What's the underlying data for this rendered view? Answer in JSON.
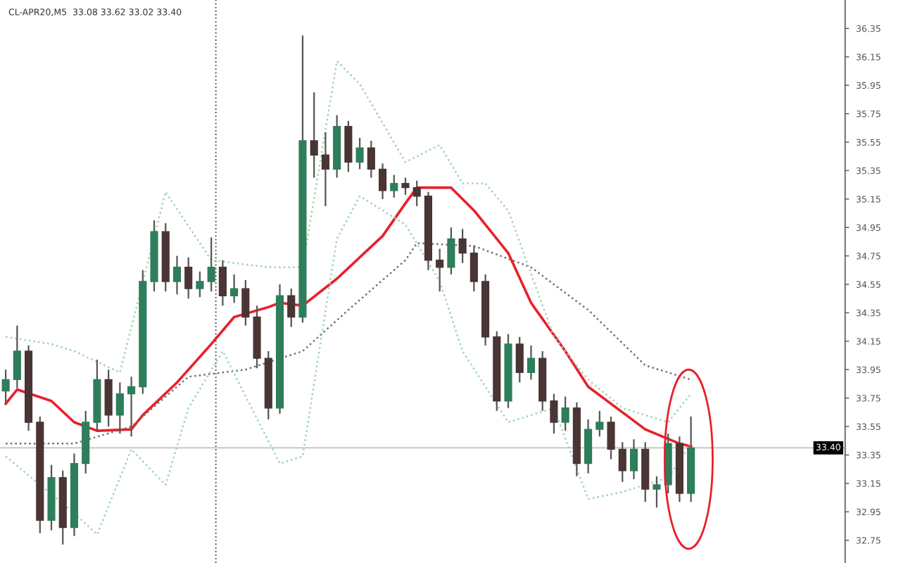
{
  "chart_data": {
    "type": "candlestick",
    "title": "CL-APR20,M5  33.08 33.62 33.02 33.40",
    "categories": [
      null,
      null,
      null,
      null,
      null,
      null,
      null,
      null,
      null,
      null,
      null,
      null,
      null,
      null,
      null,
      null,
      null,
      null,
      null,
      null,
      null,
      null,
      null,
      null,
      null,
      null,
      null,
      null,
      null,
      null,
      null,
      null,
      null,
      null,
      null,
      null,
      null,
      null,
      null,
      null,
      null,
      null,
      null,
      null,
      null,
      null,
      null,
      null,
      null,
      null,
      null,
      null,
      null,
      null,
      null,
      null,
      null,
      null,
      null,
      null,
      null,
      null,
      null,
      null,
      null,
      null,
      null,
      null,
      null,
      null,
      null,
      null,
      null,
      null
    ],
    "ohlc": [
      [
        33.8,
        33.95,
        33.72,
        33.88
      ],
      [
        33.88,
        34.26,
        33.82,
        34.08
      ],
      [
        34.08,
        34.12,
        33.52,
        33.58
      ],
      [
        33.58,
        33.62,
        32.8,
        32.89
      ],
      [
        32.89,
        33.28,
        32.82,
        33.19
      ],
      [
        33.19,
        33.24,
        32.72,
        32.84
      ],
      [
        32.84,
        33.36,
        32.78,
        33.29
      ],
      [
        33.29,
        33.66,
        33.22,
        33.58
      ],
      [
        33.58,
        34.02,
        33.52,
        33.88
      ],
      [
        33.88,
        33.95,
        33.55,
        33.63
      ],
      [
        33.63,
        33.86,
        33.5,
        33.78
      ],
      [
        33.78,
        33.9,
        33.48,
        33.83
      ],
      [
        33.83,
        34.65,
        33.78,
        34.57
      ],
      [
        34.57,
        35.0,
        34.5,
        34.92
      ],
      [
        34.92,
        34.98,
        34.5,
        34.57
      ],
      [
        34.57,
        34.75,
        34.48,
        34.67
      ],
      [
        34.67,
        34.74,
        34.45,
        34.52
      ],
      [
        34.52,
        34.64,
        34.46,
        34.57
      ],
      [
        34.57,
        34.88,
        34.5,
        34.67
      ],
      [
        34.67,
        34.72,
        34.4,
        34.47
      ],
      [
        34.47,
        34.62,
        34.42,
        34.52
      ],
      [
        34.52,
        34.58,
        34.26,
        34.32
      ],
      [
        34.32,
        34.4,
        33.96,
        34.03
      ],
      [
        34.03,
        34.08,
        33.6,
        33.68
      ],
      [
        33.68,
        34.55,
        33.64,
        34.47
      ],
      [
        34.47,
        34.52,
        34.25,
        34.32
      ],
      [
        34.32,
        36.3,
        34.28,
        35.56
      ],
      [
        35.56,
        35.9,
        35.3,
        35.46
      ],
      [
        35.46,
        35.62,
        35.1,
        35.36
      ],
      [
        35.36,
        35.74,
        35.3,
        35.66
      ],
      [
        35.66,
        35.7,
        35.34,
        35.41
      ],
      [
        35.41,
        35.58,
        35.36,
        35.51
      ],
      [
        35.51,
        35.56,
        35.3,
        35.36
      ],
      [
        35.36,
        35.4,
        35.15,
        35.21
      ],
      [
        35.21,
        35.32,
        35.16,
        35.26
      ],
      [
        35.26,
        35.3,
        35.18,
        35.23
      ],
      [
        35.23,
        35.28,
        35.1,
        35.17
      ],
      [
        35.17,
        35.2,
        34.65,
        34.72
      ],
      [
        34.72,
        34.8,
        34.5,
        34.67
      ],
      [
        34.67,
        34.95,
        34.62,
        34.87
      ],
      [
        34.87,
        34.94,
        34.7,
        34.77
      ],
      [
        34.77,
        34.82,
        34.5,
        34.57
      ],
      [
        34.57,
        34.62,
        34.12,
        34.18
      ],
      [
        34.18,
        34.22,
        33.66,
        33.73
      ],
      [
        33.73,
        34.2,
        33.68,
        34.13
      ],
      [
        34.13,
        34.18,
        33.86,
        33.93
      ],
      [
        33.93,
        34.12,
        33.88,
        34.03
      ],
      [
        34.03,
        34.08,
        33.66,
        33.73
      ],
      [
        33.73,
        33.78,
        33.5,
        33.58
      ],
      [
        33.58,
        33.76,
        33.52,
        33.68
      ],
      [
        33.68,
        33.72,
        33.2,
        33.29
      ],
      [
        33.29,
        33.6,
        33.22,
        33.53
      ],
      [
        33.53,
        33.66,
        33.48,
        33.58
      ],
      [
        33.58,
        33.62,
        33.32,
        33.39
      ],
      [
        33.39,
        33.44,
        33.16,
        33.24
      ],
      [
        33.24,
        33.46,
        33.18,
        33.39
      ],
      [
        33.39,
        33.44,
        33.02,
        33.11
      ],
      [
        33.11,
        33.2,
        32.98,
        33.14
      ],
      [
        33.14,
        33.5,
        33.08,
        33.43
      ],
      [
        33.43,
        33.48,
        33.02,
        33.08
      ],
      [
        33.08,
        33.62,
        33.02,
        33.4
      ],
      null,
      null,
      null,
      null,
      null,
      null,
      null,
      null,
      null,
      null,
      null,
      null,
      null
    ],
    "colors": [
      "#2e7d5b",
      "#2e7d5b",
      "#4a3434",
      "#4a3434",
      "#2e7d5b",
      "#4a3434",
      "#2e7d5b",
      "#2e7d5b",
      "#2e7d5b",
      "#4a3434",
      "#2e7d5b",
      "#2e7d5b",
      "#2e7d5b",
      "#2e7d5b",
      "#4a3434",
      "#2e7d5b",
      "#4a3434",
      "#2e7d5b",
      "#2e7d5b",
      "#4a3434",
      "#2e7d5b",
      "#4a3434",
      "#4a3434",
      "#4a3434",
      "#2e7d5b",
      "#4a3434",
      "#2e7d5b",
      "#4a3434",
      "#4a3434",
      "#2e7d5b",
      "#4a3434",
      "#2e7d5b",
      "#4a3434",
      "#4a3434",
      "#2e7d5b",
      "#4a3434",
      "#4a3434",
      "#4a3434",
      "#4a3434",
      "#2e7d5b",
      "#4a3434",
      "#4a3434",
      "#4a3434",
      "#4a3434",
      "#2e7d5b",
      "#4a3434",
      "#2e7d5b",
      "#4a3434",
      "#4a3434",
      "#2e7d5b",
      "#4a3434",
      "#2e7d5b",
      "#2e7d5b",
      "#4a3434",
      "#4a3434",
      "#2e7d5b",
      "#4a3434",
      "#2e7d5b",
      "#2e7d5b",
      "#4a3434",
      "#2e7d5b",
      null,
      null,
      null,
      null,
      null,
      null,
      null,
      null,
      null,
      null,
      null,
      null,
      null
    ],
    "series": [
      {
        "type": "line",
        "color": "#e8202a",
        "line_style": "solid",
        "values": [
          33.71,
          33.81,
          null,
          null,
          33.73,
          null,
          33.58,
          null,
          33.52,
          null,
          null,
          33.53,
          33.63,
          null,
          null,
          33.86,
          null,
          null,
          34.13,
          null,
          34.32,
          null,
          null,
          34.39,
          34.42,
          null,
          34.4,
          null,
          null,
          34.59,
          null,
          null,
          null,
          34.89,
          null,
          35.12,
          35.23,
          null,
          null,
          35.23,
          null,
          35.07,
          null,
          null,
          34.77,
          null,
          34.42,
          null,
          null,
          34.08,
          null,
          33.83,
          null,
          null,
          33.65,
          null,
          33.53,
          null,
          null,
          33.43,
          33.41,
          null,
          null,
          null,
          null,
          null,
          null,
          null,
          null,
          null,
          null,
          null,
          null,
          null
        ]
      },
      {
        "type": "line",
        "color": "#707070",
        "line_style": "dotted",
        "values": [
          33.43,
          null,
          null,
          null,
          null,
          null,
          33.43,
          null,
          null,
          null,
          null,
          33.55,
          null,
          null,
          null,
          null,
          33.9,
          null,
          null,
          null,
          null,
          33.95,
          null,
          null,
          null,
          null,
          34.08,
          null,
          null,
          null,
          34.37,
          null,
          null,
          null,
          null,
          34.72,
          34.84,
          null,
          null,
          null,
          null,
          34.82,
          null,
          null,
          null,
          null,
          34.67,
          null,
          null,
          null,
          null,
          34.37,
          null,
          null,
          null,
          null,
          33.98,
          null,
          null,
          null,
          33.88,
          null,
          null,
          null,
          null,
          null,
          null,
          null,
          null,
          null,
          null,
          null,
          null,
          null
        ]
      },
      {
        "type": "line",
        "color": "#9fd3b4",
        "line_style": "dotted",
        "values": [
          34.18,
          null,
          null,
          null,
          34.13,
          null,
          34.08,
          null,
          null,
          null,
          33.93,
          null,
          null,
          null,
          35.2,
          null,
          null,
          null,
          34.72,
          null,
          null,
          null,
          null,
          34.67,
          null,
          null,
          34.67,
          null,
          null,
          36.12,
          null,
          35.96,
          null,
          null,
          null,
          35.41,
          null,
          null,
          35.53,
          null,
          35.26,
          null,
          35.26,
          null,
          35.07,
          null,
          null,
          null,
          34.18,
          null,
          null,
          33.88,
          null,
          null,
          33.68,
          null,
          null,
          null,
          33.58,
          null,
          33.78,
          null,
          null,
          null,
          null,
          null,
          null,
          null,
          null,
          null,
          null,
          null,
          null,
          null
        ]
      },
      {
        "type": "line",
        "color": "#9fd3b4",
        "line_style": "dotted",
        "values": [
          33.34,
          null,
          null,
          null,
          null,
          null,
          32.94,
          null,
          32.79,
          null,
          null,
          33.39,
          null,
          null,
          33.14,
          null,
          33.68,
          null,
          null,
          34.08,
          null,
          null,
          null,
          null,
          33.29,
          null,
          33.34,
          null,
          null,
          34.87,
          null,
          35.17,
          null,
          null,
          null,
          34.97,
          null,
          null,
          34.57,
          null,
          34.08,
          null,
          null,
          null,
          33.58,
          null,
          null,
          null,
          33.68,
          null,
          null,
          33.04,
          null,
          null,
          33.09,
          null,
          null,
          null,
          33.19,
          null,
          33.43,
          null,
          null,
          null,
          null,
          null,
          null,
          null,
          null,
          null,
          null,
          null,
          null,
          null
        ]
      }
    ],
    "ref_lines": [
      {
        "axis": "y",
        "value": 33.4,
        "label": "33.40",
        "color": "#c0c0c0",
        "line_style": "solid"
      }
    ],
    "ylim": [
      32.59,
      36.55
    ],
    "yticks": [
      32.75,
      32.95,
      33.15,
      33.35,
      33.55,
      33.75,
      33.95,
      34.15,
      34.35,
      34.55,
      34.75,
      34.95,
      35.15,
      35.35,
      35.55,
      35.75,
      35.95,
      36.15,
      36.35
    ],
    "tick_labels": "y",
    "grid": false,
    "legend": false
  }
}
